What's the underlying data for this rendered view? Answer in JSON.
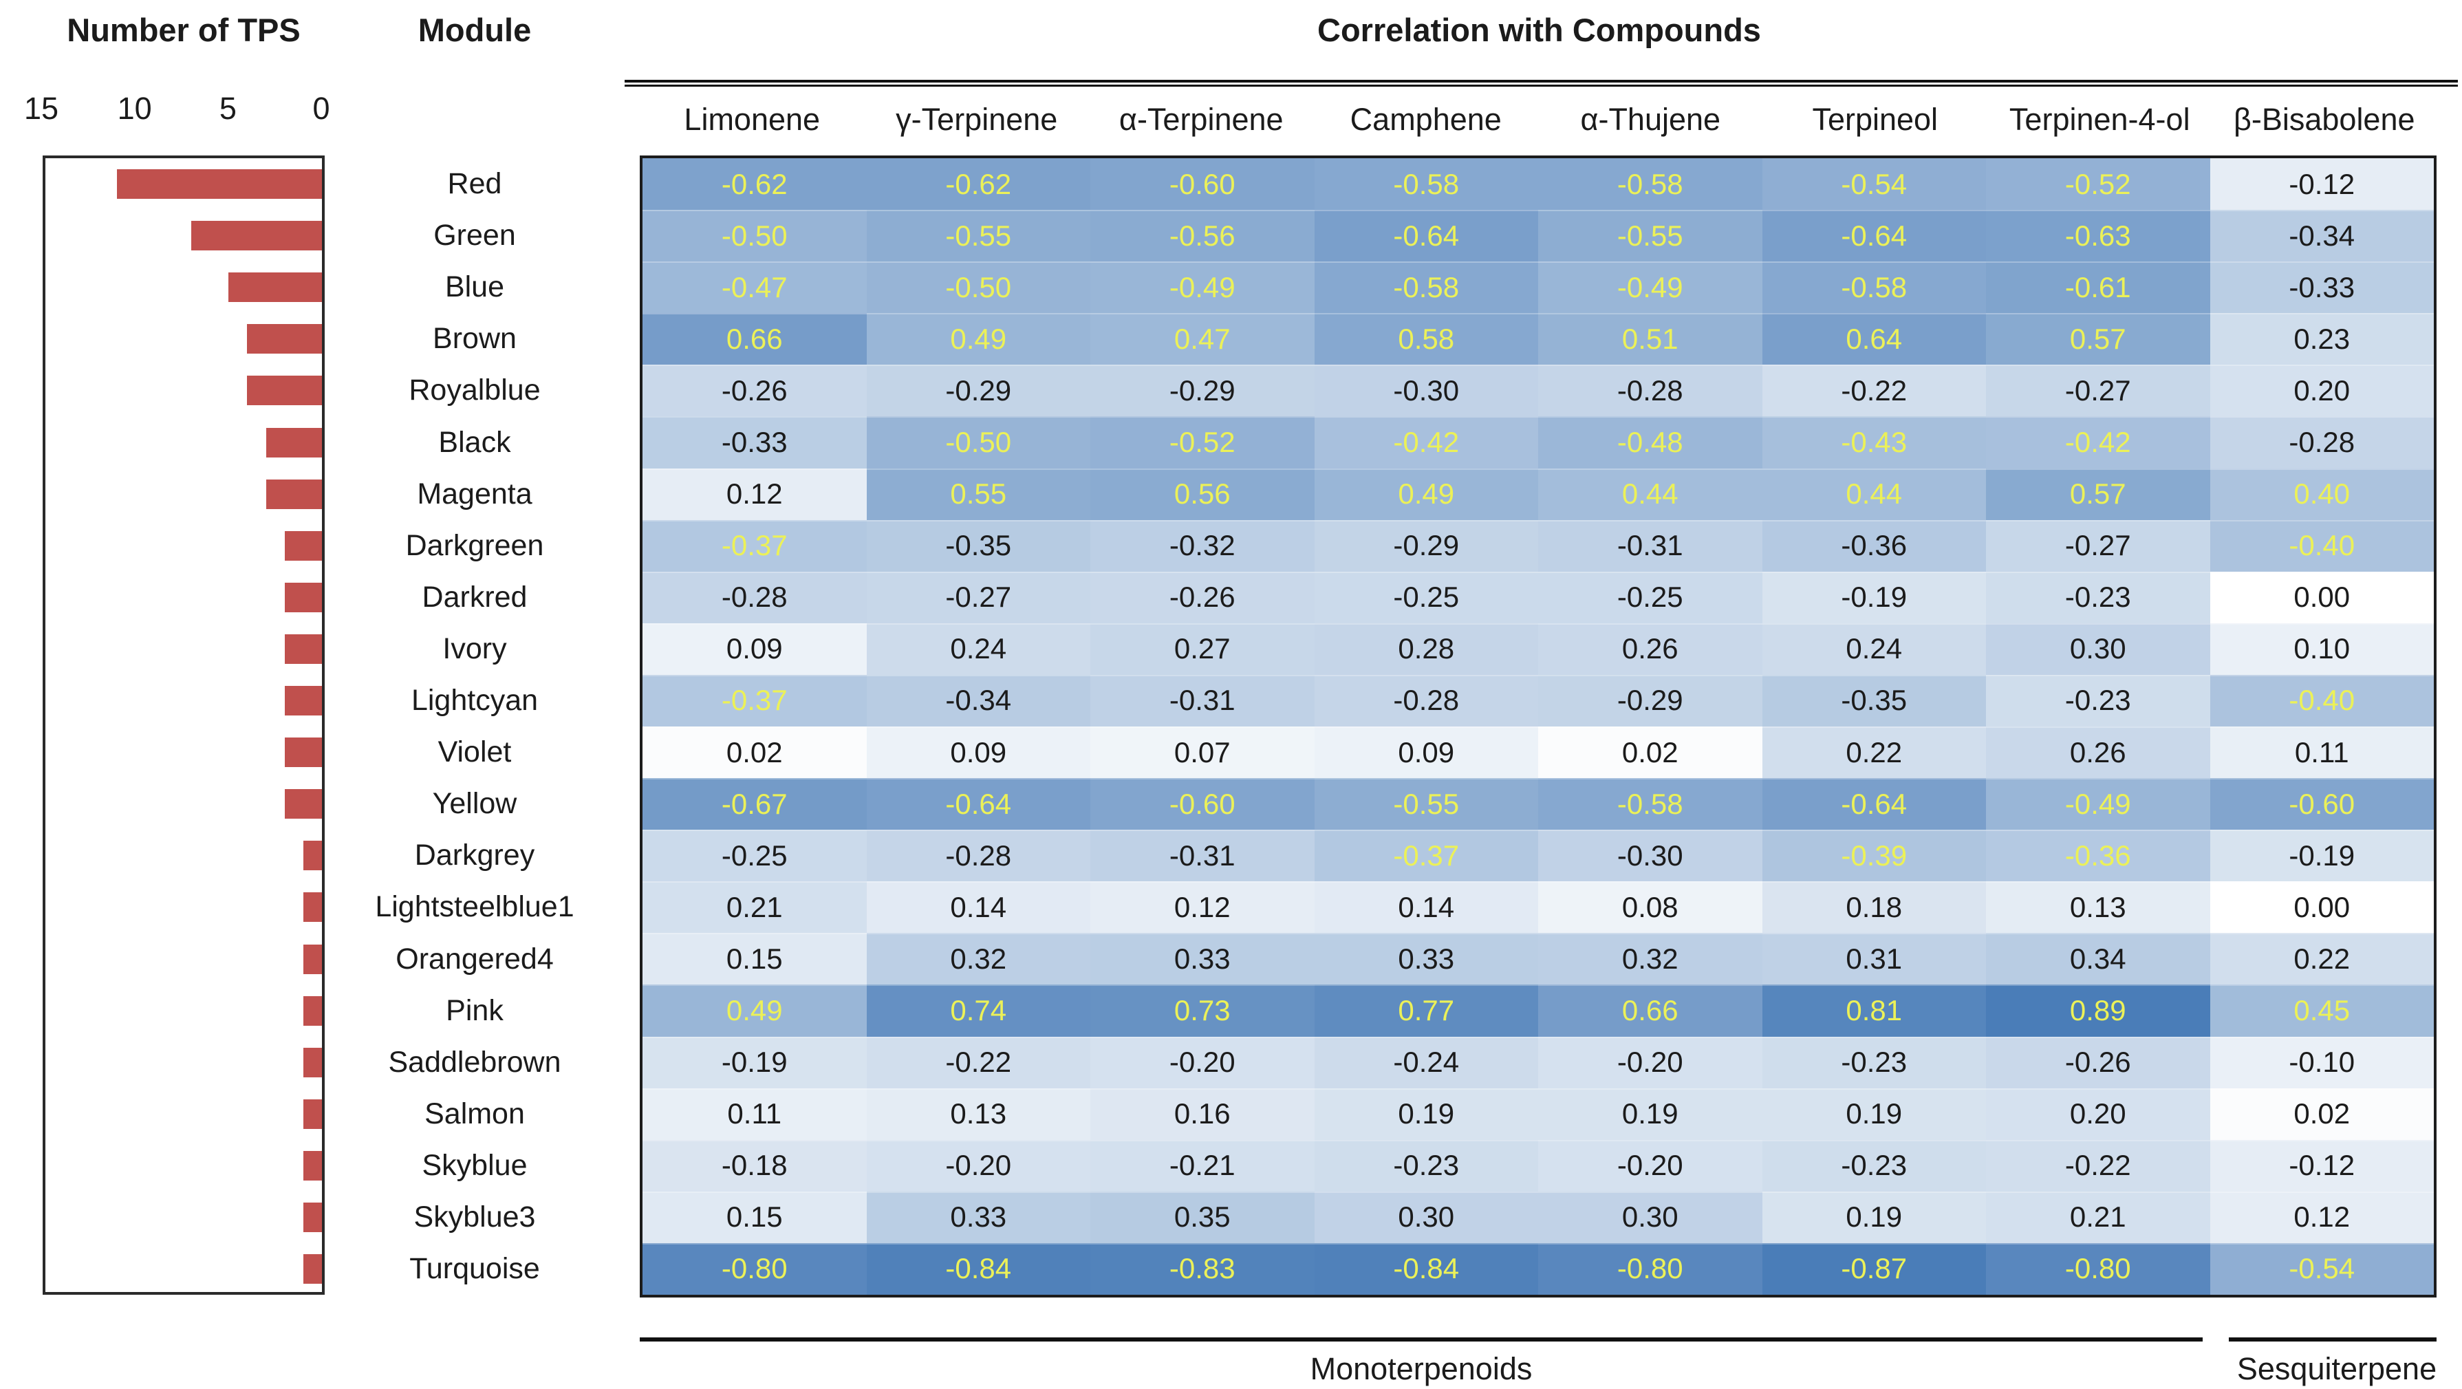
{
  "figure": {
    "left_chart_title": "Number of TPS",
    "module_header": "Module",
    "heatmap_title": "Correlation with Compounds",
    "group_labels": {
      "monoterpenoids": "Monoterpenoids",
      "sesquiterpene": "Sesquiterpene"
    }
  },
  "colors": {
    "bar": "#c0504d",
    "heat_max": "#4a7db8",
    "heat_zero": "#ffffff",
    "significant_text": "#ecf158",
    "normal_text": "#1b1b1b",
    "rule": "#111111"
  },
  "chart_data": [
    {
      "type": "bar",
      "orientation": "horizontal",
      "title": "Number of TPS",
      "xlabel": "Number of TPS",
      "xlim": [
        15,
        0
      ],
      "x_ticks": [
        15,
        10,
        5,
        0
      ],
      "grid": false,
      "categories": [
        "Red",
        "Green",
        "Blue",
        "Brown",
        "Royalblue",
        "Black",
        "Magenta",
        "Darkgreen",
        "Darkred",
        "Ivory",
        "Lightcyan",
        "Violet",
        "Yellow",
        "Darkgrey",
        "Lightsteelblue1",
        "Orangered4",
        "Pink",
        "Saddlebrown",
        "Salmon",
        "Skyblue",
        "Skyblue3",
        "Turquoise"
      ],
      "values": [
        11,
        7,
        5,
        4,
        4,
        3,
        3,
        2,
        2,
        2,
        2,
        2,
        2,
        1,
        1,
        1,
        1,
        1,
        1,
        1,
        1,
        1
      ]
    },
    {
      "type": "heatmap",
      "title": "Correlation with Compounds",
      "rows": [
        "Red",
        "Green",
        "Blue",
        "Brown",
        "Royalblue",
        "Black",
        "Magenta",
        "Darkgreen",
        "Darkred",
        "Ivory",
        "Lightcyan",
        "Violet",
        "Yellow",
        "Darkgrey",
        "Lightsteelblue1",
        "Orangered4",
        "Pink",
        "Saddlebrown",
        "Salmon",
        "Skyblue",
        "Skyblue3",
        "Turquoise"
      ],
      "columns": [
        "Limonene",
        "γ-Terpinene",
        "α-Terpinene",
        "Camphene",
        "α-Thujene",
        "Terpineol",
        "Terpinen-4-ol",
        "β-Bisabolene"
      ],
      "values": [
        [
          -0.62,
          -0.62,
          -0.6,
          -0.58,
          -0.58,
          -0.54,
          -0.52,
          -0.12
        ],
        [
          -0.5,
          -0.55,
          -0.56,
          -0.64,
          -0.55,
          -0.64,
          -0.63,
          -0.34
        ],
        [
          -0.47,
          -0.5,
          -0.49,
          -0.58,
          -0.49,
          -0.58,
          -0.61,
          -0.33
        ],
        [
          0.66,
          0.49,
          0.47,
          0.58,
          0.51,
          0.64,
          0.57,
          0.23
        ],
        [
          -0.26,
          -0.29,
          -0.29,
          -0.3,
          -0.28,
          -0.22,
          -0.27,
          0.2
        ],
        [
          -0.33,
          -0.5,
          -0.52,
          -0.42,
          -0.48,
          -0.43,
          -0.42,
          -0.28
        ],
        [
          0.12,
          0.55,
          0.56,
          0.49,
          0.44,
          0.44,
          0.57,
          0.4
        ],
        [
          -0.37,
          -0.35,
          -0.32,
          -0.29,
          -0.31,
          -0.36,
          -0.27,
          -0.4
        ],
        [
          -0.28,
          -0.27,
          -0.26,
          -0.25,
          -0.25,
          -0.19,
          -0.23,
          0.0
        ],
        [
          0.09,
          0.24,
          0.27,
          0.28,
          0.26,
          0.24,
          0.3,
          0.1
        ],
        [
          -0.37,
          -0.34,
          -0.31,
          -0.28,
          -0.29,
          -0.35,
          -0.23,
          -0.4
        ],
        [
          0.02,
          0.09,
          0.07,
          0.09,
          0.02,
          0.22,
          0.26,
          0.11
        ],
        [
          -0.67,
          -0.64,
          -0.6,
          -0.55,
          -0.58,
          -0.64,
          -0.49,
          -0.6
        ],
        [
          -0.25,
          -0.28,
          -0.31,
          -0.37,
          -0.3,
          -0.39,
          -0.36,
          -0.19
        ],
        [
          0.21,
          0.14,
          0.12,
          0.14,
          0.08,
          0.18,
          0.13,
          0.0
        ],
        [
          0.15,
          0.32,
          0.33,
          0.33,
          0.32,
          0.31,
          0.34,
          0.22
        ],
        [
          0.49,
          0.74,
          0.73,
          0.77,
          0.66,
          0.81,
          0.89,
          0.45
        ],
        [
          -0.19,
          -0.22,
          -0.2,
          -0.24,
          -0.2,
          -0.23,
          -0.26,
          -0.1
        ],
        [
          0.11,
          0.13,
          0.16,
          0.19,
          0.19,
          0.19,
          0.2,
          0.02
        ],
        [
          -0.18,
          -0.2,
          -0.21,
          -0.23,
          -0.2,
          -0.23,
          -0.22,
          -0.12
        ],
        [
          0.15,
          0.33,
          0.35,
          0.3,
          0.3,
          0.19,
          0.21,
          0.12
        ],
        [
          -0.8,
          -0.84,
          -0.83,
          -0.84,
          -0.8,
          -0.87,
          -0.8,
          -0.54
        ]
      ],
      "significant_yellow": [
        [
          1,
          1,
          1,
          1,
          1,
          1,
          1,
          0
        ],
        [
          1,
          1,
          1,
          1,
          1,
          1,
          1,
          0
        ],
        [
          1,
          1,
          1,
          1,
          1,
          1,
          1,
          0
        ],
        [
          1,
          1,
          1,
          1,
          1,
          1,
          1,
          0
        ],
        [
          0,
          0,
          0,
          0,
          0,
          0,
          0,
          0
        ],
        [
          0,
          1,
          1,
          1,
          1,
          1,
          1,
          0
        ],
        [
          0,
          1,
          1,
          1,
          1,
          1,
          1,
          1
        ],
        [
          1,
          0,
          0,
          0,
          0,
          0,
          0,
          1
        ],
        [
          0,
          0,
          0,
          0,
          0,
          0,
          0,
          0
        ],
        [
          0,
          0,
          0,
          0,
          0,
          0,
          0,
          0
        ],
        [
          1,
          0,
          0,
          0,
          0,
          0,
          0,
          1
        ],
        [
          0,
          0,
          0,
          0,
          0,
          0,
          0,
          0
        ],
        [
          1,
          1,
          1,
          1,
          1,
          1,
          1,
          1
        ],
        [
          0,
          0,
          0,
          1,
          0,
          1,
          1,
          0
        ],
        [
          0,
          0,
          0,
          0,
          0,
          0,
          0,
          0
        ],
        [
          0,
          0,
          0,
          0,
          0,
          0,
          0,
          0
        ],
        [
          1,
          1,
          1,
          1,
          1,
          1,
          1,
          1
        ],
        [
          0,
          0,
          0,
          0,
          0,
          0,
          0,
          0
        ],
        [
          0,
          0,
          0,
          0,
          0,
          0,
          0,
          0
        ],
        [
          0,
          0,
          0,
          0,
          0,
          0,
          0,
          0
        ],
        [
          0,
          0,
          0,
          0,
          0,
          0,
          0,
          0
        ],
        [
          1,
          1,
          1,
          1,
          1,
          1,
          1,
          1
        ]
      ],
      "color_scale": {
        "zero_color": "#ffffff",
        "max_color": "#4a7db8",
        "abs_domain": [
          0,
          0.87
        ]
      },
      "legend_position": "none",
      "column_groups": [
        {
          "label": "Monoterpenoids",
          "columns": [
            "Limonene",
            "γ-Terpinene",
            "α-Terpinene",
            "Camphene",
            "α-Thujene",
            "Terpineol",
            "Terpinen-4-ol"
          ]
        },
        {
          "label": "Sesquiterpene",
          "columns": [
            "β-Bisabolene"
          ]
        }
      ]
    }
  ]
}
